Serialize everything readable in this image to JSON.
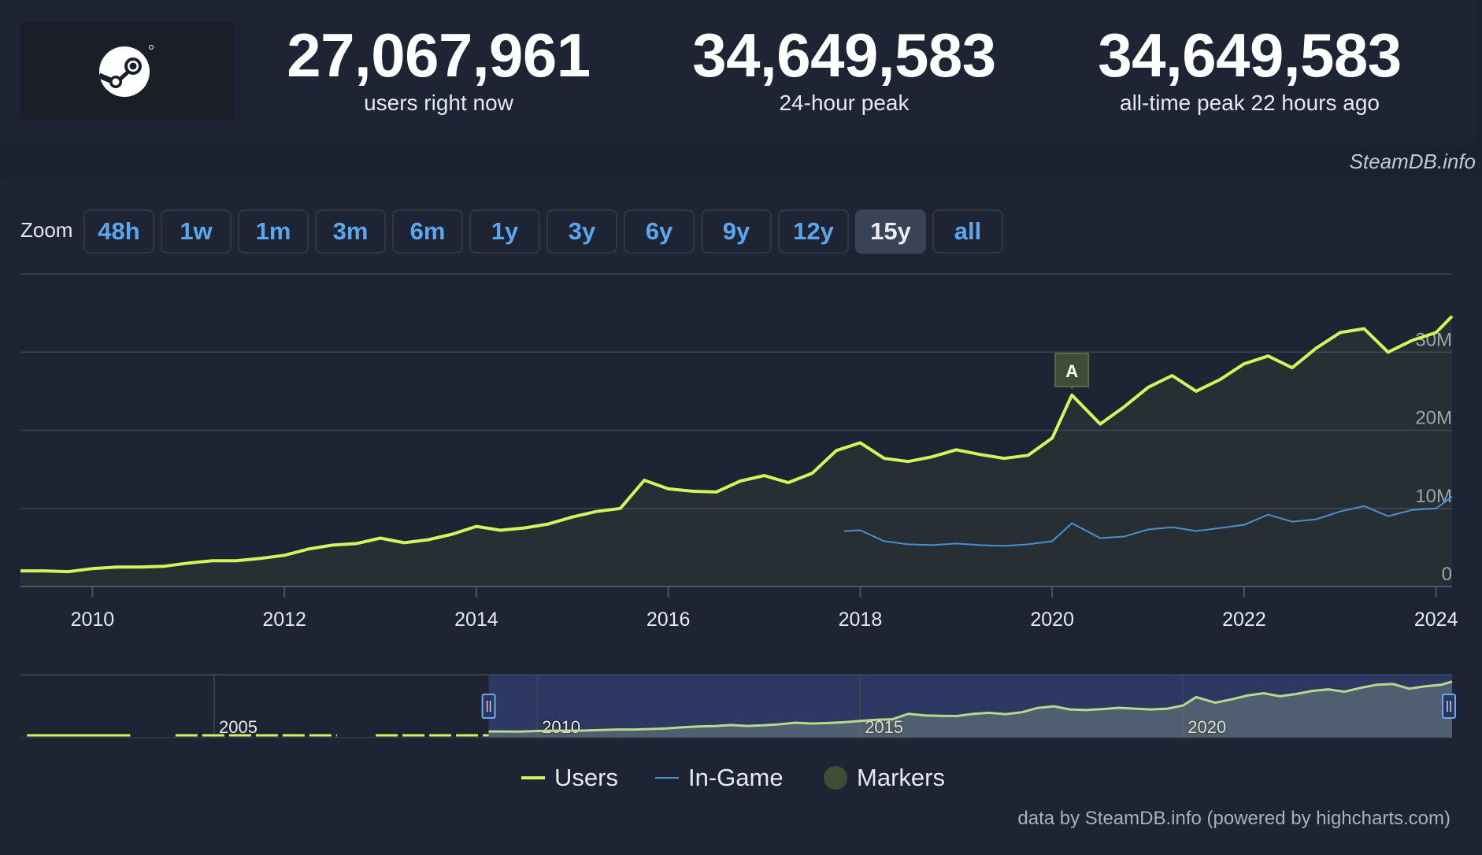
{
  "stats": [
    {
      "value": "27,067,961",
      "label": "users right now"
    },
    {
      "value": "34,649,583",
      "label": "24-hour peak"
    },
    {
      "value": "34,649,583",
      "label": "all-time peak 22 hours ago"
    }
  ],
  "watermark": "SteamDB.info",
  "zoom": {
    "label": "Zoom",
    "options": [
      "48h",
      "1w",
      "1m",
      "3m",
      "6m",
      "1y",
      "3y",
      "6y",
      "9y",
      "12y",
      "15y",
      "all"
    ],
    "selected": "15y"
  },
  "colors": {
    "users": "#d2f65a",
    "in_game": "#4a8fd4",
    "markers": "#3f4c36",
    "background": "#1e2433",
    "navigator_selection": "#303d6c"
  },
  "chart_data": {
    "type": "line",
    "title": "",
    "x_axis": {
      "type": "datetime",
      "range": [
        "2009-04",
        "2024-03"
      ],
      "tick_labels": [
        "2010",
        "2012",
        "2014",
        "2016",
        "2018",
        "2020",
        "2022",
        "2024"
      ]
    },
    "y_axis": {
      "range": [
        0,
        40000000
      ],
      "tick_labels": [
        "0",
        "10M",
        "20M",
        "30M"
      ],
      "position": "right",
      "grid": true
    },
    "series": [
      {
        "name": "Users",
        "color": "#d2f65a",
        "points": [
          [
            "2009-04-01",
            2000000
          ],
          [
            "2009-07-01",
            2000000
          ],
          [
            "2009-10-01",
            1900000
          ],
          [
            "2010-01-01",
            2300000
          ],
          [
            "2010-04-01",
            2500000
          ],
          [
            "2010-07-01",
            2500000
          ],
          [
            "2010-10-01",
            2600000
          ],
          [
            "2011-01-01",
            3000000
          ],
          [
            "2011-04-01",
            3300000
          ],
          [
            "2011-07-01",
            3300000
          ],
          [
            "2011-10-01",
            3600000
          ],
          [
            "2012-01-01",
            4000000
          ],
          [
            "2012-04-01",
            4800000
          ],
          [
            "2012-07-01",
            5300000
          ],
          [
            "2012-10-01",
            5500000
          ],
          [
            "2013-01-01",
            6200000
          ],
          [
            "2013-04-01",
            5600000
          ],
          [
            "2013-07-01",
            6000000
          ],
          [
            "2013-10-01",
            6700000
          ],
          [
            "2014-01-01",
            7700000
          ],
          [
            "2014-04-01",
            7200000
          ],
          [
            "2014-07-01",
            7500000
          ],
          [
            "2014-10-01",
            8000000
          ],
          [
            "2015-01-01",
            8900000
          ],
          [
            "2015-04-01",
            9600000
          ],
          [
            "2015-07-01",
            10000000
          ],
          [
            "2015-10-01",
            13600000
          ],
          [
            "2016-01-01",
            12500000
          ],
          [
            "2016-04-01",
            12200000
          ],
          [
            "2016-07-01",
            12100000
          ],
          [
            "2016-10-01",
            13500000
          ],
          [
            "2017-01-01",
            14200000
          ],
          [
            "2017-04-01",
            13300000
          ],
          [
            "2017-07-01",
            14500000
          ],
          [
            "2017-10-01",
            17400000
          ],
          [
            "2018-01-01",
            18400000
          ],
          [
            "2018-04-01",
            16400000
          ],
          [
            "2018-07-01",
            16000000
          ],
          [
            "2018-10-01",
            16600000
          ],
          [
            "2019-01-01",
            17500000
          ],
          [
            "2019-04-01",
            16900000
          ],
          [
            "2019-07-01",
            16400000
          ],
          [
            "2019-10-01",
            16800000
          ],
          [
            "2020-01-01",
            19000000
          ],
          [
            "2020-03-15",
            24500000
          ],
          [
            "2020-07-01",
            20800000
          ],
          [
            "2020-10-01",
            23000000
          ],
          [
            "2021-01-01",
            25500000
          ],
          [
            "2021-04-01",
            27000000
          ],
          [
            "2021-07-01",
            25000000
          ],
          [
            "2021-10-01",
            26500000
          ],
          [
            "2022-01-01",
            28500000
          ],
          [
            "2022-04-01",
            29500000
          ],
          [
            "2022-07-01",
            28000000
          ],
          [
            "2022-10-01",
            30500000
          ],
          [
            "2023-01-01",
            32500000
          ],
          [
            "2023-04-01",
            33000000
          ],
          [
            "2023-07-01",
            30000000
          ],
          [
            "2023-10-01",
            31500000
          ],
          [
            "2024-01-01",
            32500000
          ],
          [
            "2024-03-01",
            34600000
          ]
        ]
      },
      {
        "name": "In-Game",
        "color": "#4a8fd4",
        "points": [
          [
            "2017-11-01",
            7100000
          ],
          [
            "2018-01-01",
            7200000
          ],
          [
            "2018-04-01",
            5800000
          ],
          [
            "2018-07-01",
            5400000
          ],
          [
            "2018-10-01",
            5300000
          ],
          [
            "2019-01-01",
            5500000
          ],
          [
            "2019-04-01",
            5300000
          ],
          [
            "2019-07-01",
            5200000
          ],
          [
            "2019-10-01",
            5400000
          ],
          [
            "2020-01-01",
            5800000
          ],
          [
            "2020-03-15",
            8100000
          ],
          [
            "2020-07-01",
            6200000
          ],
          [
            "2020-10-01",
            6400000
          ],
          [
            "2021-01-01",
            7300000
          ],
          [
            "2021-04-01",
            7600000
          ],
          [
            "2021-07-01",
            7100000
          ],
          [
            "2021-10-01",
            7500000
          ],
          [
            "2022-01-01",
            7900000
          ],
          [
            "2022-04-01",
            9200000
          ],
          [
            "2022-07-01",
            8300000
          ],
          [
            "2022-10-01",
            8600000
          ],
          [
            "2023-01-01",
            9600000
          ],
          [
            "2023-04-01",
            10300000
          ],
          [
            "2023-07-01",
            9000000
          ],
          [
            "2023-10-01",
            9800000
          ],
          [
            "2024-01-01",
            10000000
          ],
          [
            "2024-03-01",
            11500000
          ]
        ]
      }
    ],
    "markers": [
      {
        "label": "A",
        "date": "2020-03-15"
      }
    ],
    "navigator": {
      "tick_labels": [
        "2005",
        "2010",
        "2015",
        "2020"
      ]
    },
    "legend": {
      "placement": "bottom-center",
      "items": [
        "Users",
        "In-Game",
        "Markers"
      ]
    }
  },
  "credit": "data by SteamDB.info (powered by highcharts.com)"
}
